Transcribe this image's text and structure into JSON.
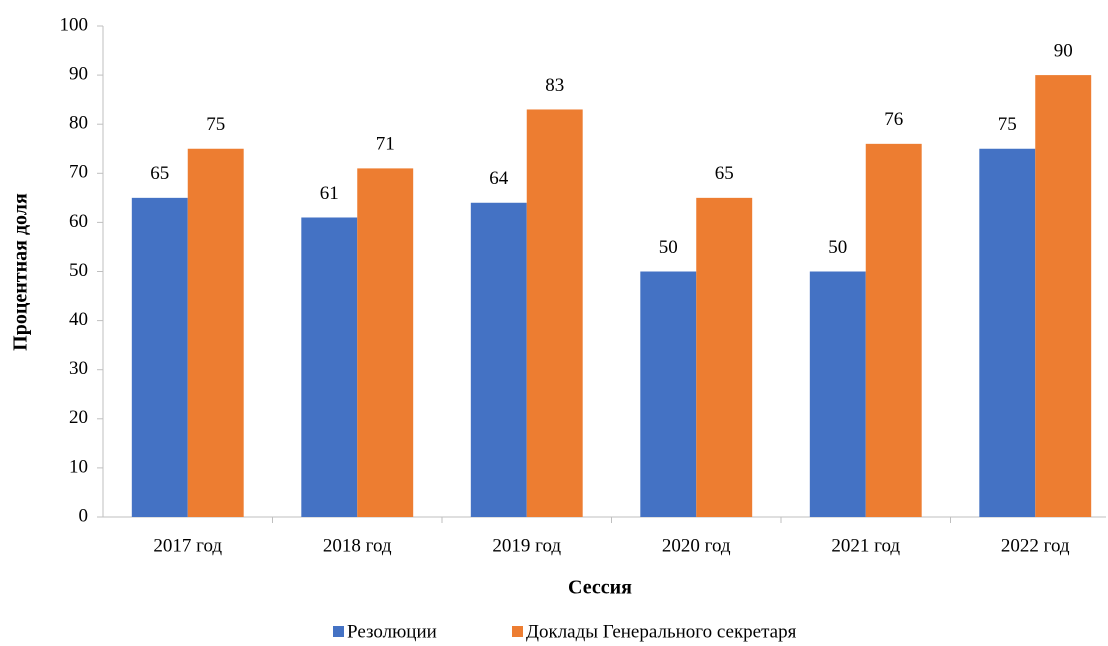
{
  "chart_data": {
    "type": "bar",
    "categories": [
      "2017 год",
      "2018 год",
      "2019 год",
      "2020 год",
      "2021 год",
      "2022 год"
    ],
    "series": [
      {
        "name": "Резолюции",
        "color": "#4472c4",
        "values": [
          65,
          61,
          64,
          50,
          50,
          75
        ]
      },
      {
        "name": "Доклады Генерального секретаря",
        "color": "#ed7d31",
        "values": [
          75,
          71,
          83,
          65,
          76,
          90
        ]
      }
    ],
    "x_label": "Сессия",
    "y_label": "Процентная доля",
    "ylim": [
      0,
      100
    ],
    "yticks": [
      0,
      10,
      20,
      30,
      40,
      50,
      60,
      70,
      80,
      90,
      100
    ],
    "grid": false,
    "legend": "bottom"
  }
}
